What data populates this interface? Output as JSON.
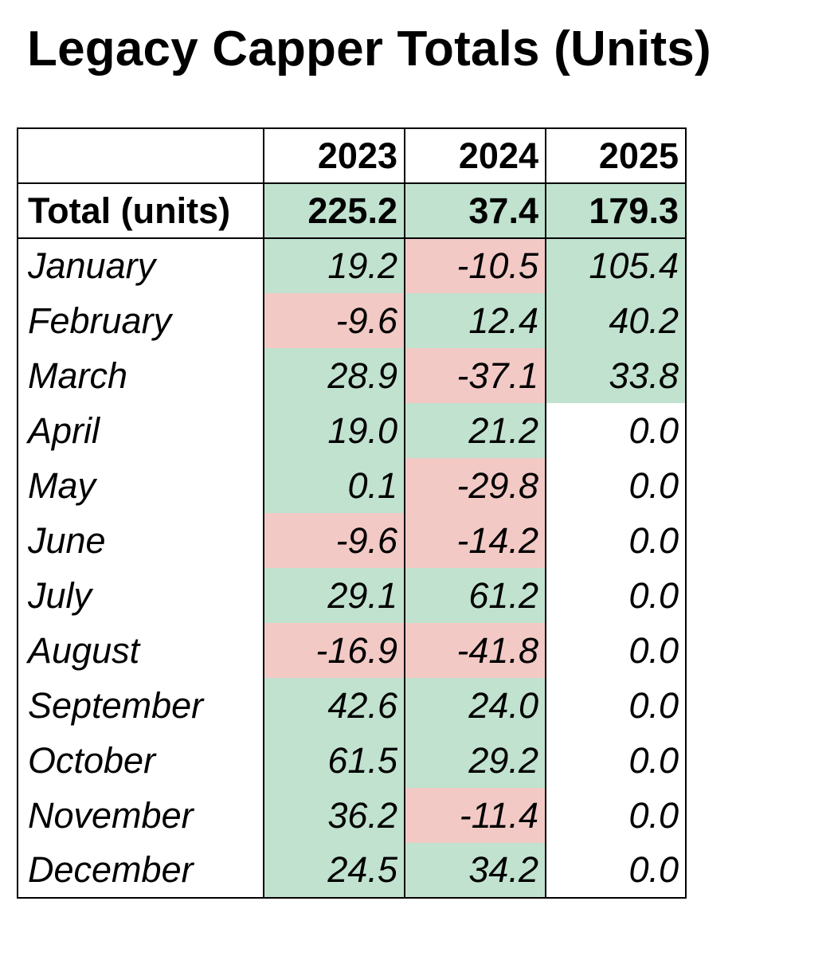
{
  "title": "Legacy Capper Totals (Units)",
  "colors": {
    "positive": "#c0e2cf",
    "negative": "#f2c9c5",
    "neutral": "#ffffff"
  },
  "chart_data": {
    "type": "table",
    "title": "Legacy Capper Totals (Units)",
    "columns": [
      "2023",
      "2024",
      "2025"
    ],
    "total_row": {
      "label": "Total (units)",
      "values": [
        "225.2",
        "37.4",
        "179.3"
      ]
    },
    "rows": [
      {
        "label": "January",
        "values": [
          "19.2",
          "-10.5",
          "105.4"
        ]
      },
      {
        "label": "February",
        "values": [
          "-9.6",
          "12.4",
          "40.2"
        ]
      },
      {
        "label": "March",
        "values": [
          "28.9",
          "-37.1",
          "33.8"
        ]
      },
      {
        "label": "April",
        "values": [
          "19.0",
          "21.2",
          "0.0"
        ]
      },
      {
        "label": "May",
        "values": [
          "0.1",
          "-29.8",
          "0.0"
        ]
      },
      {
        "label": "June",
        "values": [
          "-9.6",
          "-14.2",
          "0.0"
        ]
      },
      {
        "label": "July",
        "values": [
          "29.1",
          "61.2",
          "0.0"
        ]
      },
      {
        "label": "August",
        "values": [
          "-16.9",
          "-41.8",
          "0.0"
        ]
      },
      {
        "label": "September",
        "values": [
          "42.6",
          "24.0",
          "0.0"
        ]
      },
      {
        "label": "October",
        "values": [
          "61.5",
          "29.2",
          "0.0"
        ]
      },
      {
        "label": "November",
        "values": [
          "36.2",
          "-11.4",
          "0.0"
        ]
      },
      {
        "label": "December",
        "values": [
          "24.5",
          "34.2",
          "0.0"
        ]
      }
    ]
  }
}
